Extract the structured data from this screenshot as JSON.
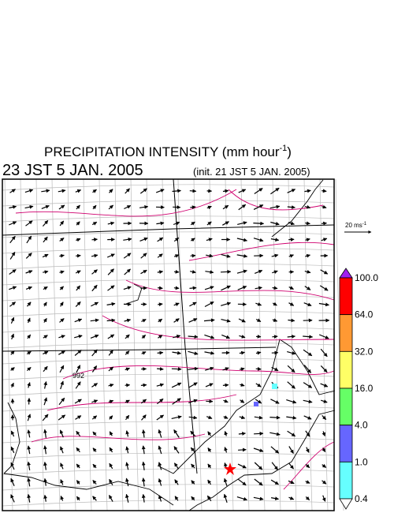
{
  "header": {
    "title": "PRECIPITATION INTENSITY (mm hour",
    "title_superscript": "-1",
    "title_close": ")",
    "valid_time": "23 JST 5 JAN. 2005",
    "init_time": "(init. 21 JST 5 JAN. 2005)"
  },
  "wind_key": {
    "label": "20 ms",
    "label_superscript": "-1"
  },
  "map": {
    "contour_label": "992"
  },
  "colorbar": {
    "top_color": "#a020f0",
    "bottom_color": "#ffffff",
    "levels": [
      "100.0",
      "64.0",
      "32.0",
      "16.0",
      "4.0",
      "1.0",
      "0.4"
    ],
    "colors": [
      "#ff0000",
      "#ff9933",
      "#ffff66",
      "#66ff66",
      "#6666ff",
      "#66ffff"
    ]
  }
}
